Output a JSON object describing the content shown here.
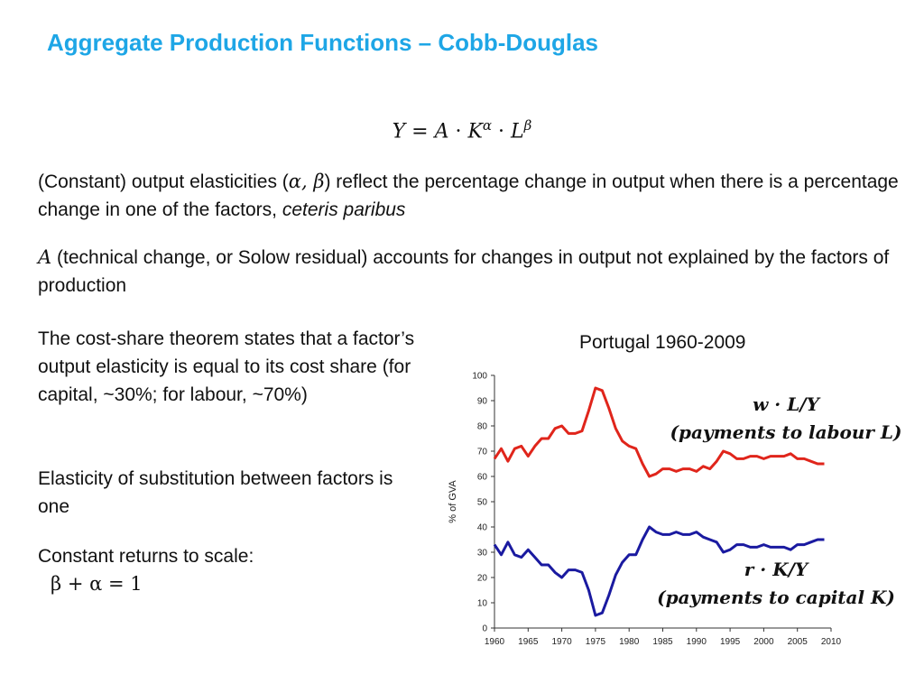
{
  "slide": {
    "title": "Aggregate Production Functions – Cobb-Douglas",
    "equation": {
      "Y": "Y",
      "eq": " = ",
      "A": "A",
      "dot": " · ",
      "K": "K",
      "alpha": "α",
      "L": "L",
      "beta": "β"
    },
    "para1": {
      "pre": "(Constant) output elasticities (",
      "math": "α, β",
      "post": ") reflect the percentage change in output when there is a percentage change in one of the factors, ",
      "italic": "ceteris paribus"
    },
    "para2": {
      "math": "A",
      "text": " (technical change, or Solow residual) accounts for changes in output not explained by the factors of production"
    },
    "para3": "The cost-share theorem states that a factor’s output elasticity is equal to its cost share (for capital, ~30%; for labour, ~70%)",
    "para4": "Elasticity of substitution between factors is one",
    "para5": {
      "text": "Constant returns to scale:",
      "equation": "β + α = 1"
    },
    "annotation_labour": {
      "line1": "w · L/Y",
      "line2": "(payments to labour L)"
    },
    "annotation_capital": {
      "line1": "r · K/Y",
      "line2": "(payments to capital K)"
    }
  },
  "chart_data": {
    "type": "line",
    "title": "Portugal 1960-2009",
    "xlabel": "",
    "ylabel": "% of GVA",
    "xlim": [
      1960,
      2010
    ],
    "ylim": [
      0,
      100
    ],
    "xticks": [
      1960,
      1965,
      1970,
      1975,
      1980,
      1985,
      1990,
      1995,
      2000,
      2005,
      2010
    ],
    "yticks": [
      0,
      10,
      20,
      30,
      40,
      50,
      60,
      70,
      80,
      90,
      100
    ],
    "grid": false,
    "x": [
      1960,
      1961,
      1962,
      1963,
      1964,
      1965,
      1966,
      1967,
      1968,
      1969,
      1970,
      1971,
      1972,
      1973,
      1974,
      1975,
      1976,
      1977,
      1978,
      1979,
      1980,
      1981,
      1982,
      1983,
      1984,
      1985,
      1986,
      1987,
      1988,
      1989,
      1990,
      1991,
      1992,
      1993,
      1994,
      1995,
      1996,
      1997,
      1998,
      1999,
      2000,
      2001,
      2002,
      2003,
      2004,
      2005,
      2006,
      2007,
      2008,
      2009
    ],
    "series": [
      {
        "name": "w · L/Y",
        "color": "#e0251b",
        "values": [
          67,
          71,
          66,
          71,
          72,
          68,
          72,
          75,
          75,
          79,
          80,
          77,
          77,
          78,
          86,
          95,
          94,
          87,
          79,
          74,
          72,
          71,
          65,
          60,
          61,
          63,
          63,
          62,
          63,
          63,
          62,
          64,
          63,
          66,
          70,
          69,
          67,
          67,
          68,
          68,
          67,
          68,
          68,
          68,
          69,
          67,
          67,
          66,
          65,
          65
        ]
      },
      {
        "name": "r · K/Y",
        "color": "#1a1aa0",
        "values": [
          33,
          29,
          34,
          29,
          28,
          31,
          28,
          25,
          25,
          22,
          20,
          23,
          23,
          22,
          15,
          5,
          6,
          13,
          21,
          26,
          29,
          29,
          35,
          40,
          38,
          37,
          37,
          38,
          37,
          37,
          38,
          36,
          35,
          34,
          30,
          31,
          33,
          33,
          32,
          32,
          33,
          32,
          32,
          32,
          31,
          33,
          33,
          34,
          35,
          35
        ]
      }
    ]
  }
}
